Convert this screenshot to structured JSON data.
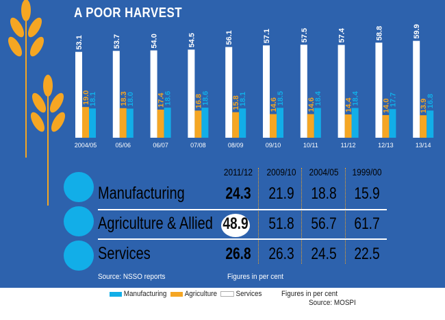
{
  "title": "A POOR HARVEST",
  "chart_data": {
    "type": "bar",
    "categories": [
      "2004/05",
      "05/06",
      "06/07",
      "07/08",
      "08/09",
      "09/10",
      "10/11",
      "11/12",
      "12/13",
      "13/14"
    ],
    "series": [
      {
        "name": "Services",
        "color": "#ffffff",
        "values": [
          53.1,
          53.7,
          54.0,
          54.5,
          56.1,
          57.1,
          57.5,
          57.4,
          58.8,
          59.9
        ]
      },
      {
        "name": "Agriculture",
        "color": "#f5a623",
        "values": [
          19.0,
          18.3,
          17.4,
          16.8,
          15.8,
          14.6,
          14.6,
          14.4,
          14.0,
          13.9
        ]
      },
      {
        "name": "Manufacturing",
        "color": "#12aee8",
        "values": [
          18.1,
          18.0,
          18.6,
          18.6,
          18.1,
          18.5,
          18.4,
          18.4,
          17.7,
          16.8
        ]
      }
    ],
    "value_labels": [
      "53.1",
      "53.7",
      "54.0",
      "54.5",
      "56.1",
      "57.1",
      "57.5",
      "57.4",
      "58.8",
      "59.9",
      "19.0",
      "18.3",
      "17.4",
      "16.8",
      "15.8",
      "14.6",
      "14.6",
      "14.4",
      "14.0",
      "13.9",
      "18.1",
      "18.0",
      "18.6",
      "18.6",
      "18.1",
      "18.5",
      "18.4",
      "18.4",
      "17.7",
      "16.8"
    ],
    "legend": {
      "placement": "bottom",
      "items": [
        "Manufacturing",
        "Agriculture",
        "Services"
      ]
    },
    "note": "Figures in per cent",
    "source": "Source: MOSPI"
  },
  "table": {
    "headers": [
      "2011/12",
      "2009/10",
      "2004/05",
      "1999/00"
    ],
    "rows": [
      {
        "label": "Manufacturing",
        "icon": "hard-hat-worker-icon",
        "values": [
          "24.3",
          "21.9",
          "18.8",
          "15.9"
        ]
      },
      {
        "label": "Agriculture & Allied",
        "icon": "farmer-turban-icon",
        "values": [
          "48.9",
          "51.8",
          "56.7",
          "61.7"
        ]
      },
      {
        "label": "Services",
        "icon": "headphones-worker-icon",
        "values": [
          "26.8",
          "26.3",
          "24.5",
          "22.5"
        ]
      }
    ],
    "source": "Source:  NSSO reports",
    "note": "Figures in per cent"
  }
}
